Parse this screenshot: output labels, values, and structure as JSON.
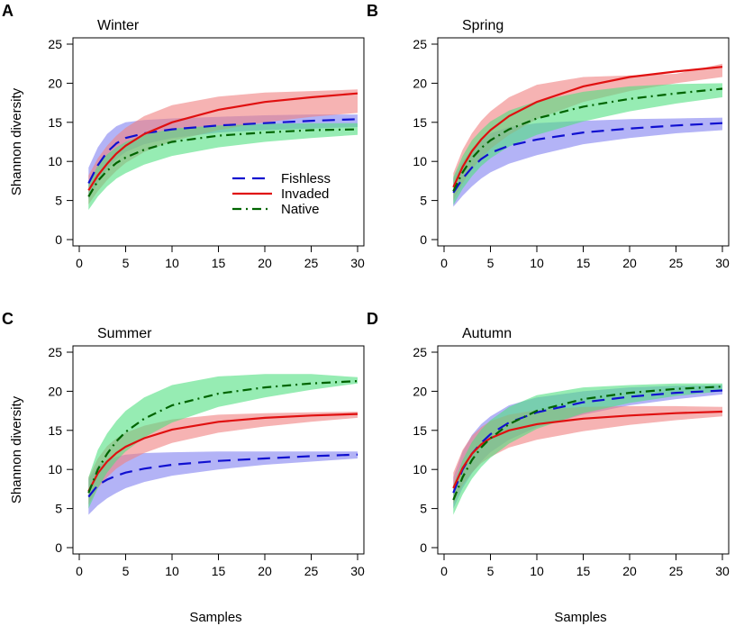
{
  "figure": {
    "xlabel": "Samples",
    "ylabel": "Shannon diversity"
  },
  "legend": [
    {
      "name": "Fishless",
      "color": "#1010d0",
      "dash": "long-dash"
    },
    {
      "name": "Invaded",
      "color": "#e01010",
      "dash": "solid"
    },
    {
      "name": "Native",
      "color": "#006400",
      "dash": "dot-dash"
    }
  ],
  "chart_data": [
    {
      "type": "line",
      "letter": "A",
      "title": "Winter",
      "xlim": [
        0,
        30
      ],
      "ylim": [
        0,
        25
      ],
      "xticks": [
        0,
        5,
        10,
        15,
        20,
        25,
        30
      ],
      "yticks": [
        0,
        5,
        10,
        15,
        20,
        25
      ],
      "x": [
        1,
        2,
        3,
        4,
        5,
        7,
        10,
        15,
        20,
        25,
        30
      ],
      "series": [
        {
          "name": "Fishless",
          "color": "#1010d0",
          "band": "#8080f0",
          "values": [
            7.2,
            9.5,
            11.2,
            12.3,
            13.0,
            13.6,
            14.1,
            14.6,
            14.9,
            15.2,
            15.4
          ],
          "lower": [
            5.2,
            7.3,
            9.0,
            10.3,
            11.2,
            12.2,
            13.0,
            13.7,
            14.0,
            14.2,
            14.4
          ],
          "upper": [
            9.2,
            11.8,
            13.5,
            14.5,
            15.0,
            15.3,
            15.5,
            15.7,
            15.9,
            16.0,
            16.0
          ]
        },
        {
          "name": "Invaded",
          "color": "#e01010",
          "band": "#f08080",
          "values": [
            6.3,
            8.2,
            9.7,
            11.0,
            12.0,
            13.5,
            15.0,
            16.6,
            17.6,
            18.2,
            18.7
          ],
          "lower": [
            4.5,
            6.2,
            7.6,
            8.8,
            9.8,
            11.2,
            12.6,
            14.0,
            15.0,
            15.7,
            16.2
          ],
          "upper": [
            8.2,
            10.4,
            12.0,
            13.3,
            14.3,
            15.8,
            17.2,
            18.3,
            18.8,
            19.0,
            19.2
          ]
        },
        {
          "name": "Native",
          "color": "#006400",
          "band": "#50e080",
          "values": [
            5.5,
            7.5,
            8.8,
            9.8,
            10.5,
            11.5,
            12.5,
            13.3,
            13.7,
            14.0,
            14.1
          ],
          "lower": [
            3.8,
            5.5,
            6.8,
            7.8,
            8.5,
            9.6,
            10.7,
            11.8,
            12.5,
            13.0,
            13.4
          ],
          "upper": [
            7.2,
            9.5,
            10.9,
            11.8,
            12.5,
            13.4,
            14.2,
            14.6,
            14.8,
            14.9,
            14.9
          ]
        }
      ]
    },
    {
      "type": "line",
      "letter": "B",
      "title": "Spring",
      "xlim": [
        0,
        30
      ],
      "ylim": [
        0,
        25
      ],
      "xticks": [
        0,
        5,
        10,
        15,
        20,
        25,
        30
      ],
      "yticks": [
        0,
        5,
        10,
        15,
        20,
        25
      ],
      "x": [
        1,
        2,
        3,
        4,
        5,
        7,
        10,
        15,
        20,
        25,
        30
      ],
      "series": [
        {
          "name": "Fishless",
          "color": "#1010d0",
          "band": "#8080f0",
          "values": [
            6.0,
            7.8,
            9.2,
            10.3,
            11.1,
            12.0,
            12.8,
            13.7,
            14.2,
            14.6,
            14.9
          ],
          "lower": [
            4.2,
            5.6,
            6.8,
            7.8,
            8.6,
            9.7,
            10.8,
            12.2,
            13.0,
            13.6,
            14.0
          ],
          "upper": [
            7.8,
            10.0,
            11.6,
            12.8,
            13.6,
            14.4,
            14.9,
            15.2,
            15.4,
            15.5,
            15.6
          ]
        },
        {
          "name": "Invaded",
          "color": "#e01010",
          "band": "#f08080",
          "values": [
            6.7,
            9.3,
            11.3,
            12.8,
            14.0,
            15.8,
            17.6,
            19.6,
            20.8,
            21.5,
            22.1
          ],
          "lower": [
            5.0,
            7.2,
            9.0,
            10.4,
            11.6,
            13.4,
            15.4,
            17.6,
            19.0,
            20.0,
            20.8
          ],
          "upper": [
            8.5,
            11.5,
            13.6,
            15.2,
            16.4,
            18.2,
            19.8,
            20.8,
            21.0,
            21.2,
            22.5
          ]
        },
        {
          "name": "Native",
          "color": "#006400",
          "band": "#50e080",
          "values": [
            6.2,
            8.6,
            10.4,
            11.7,
            12.7,
            14.1,
            15.5,
            17.0,
            18.0,
            18.7,
            19.3
          ],
          "lower": [
            4.4,
            6.5,
            8.1,
            9.4,
            10.4,
            11.9,
            13.4,
            15.1,
            16.4,
            17.4,
            18.2
          ],
          "upper": [
            8.0,
            10.7,
            12.7,
            14.0,
            15.1,
            16.5,
            17.7,
            18.9,
            19.6,
            19.9,
            20.0
          ]
        }
      ]
    },
    {
      "type": "line",
      "letter": "C",
      "title": "Summer",
      "xlim": [
        0,
        30
      ],
      "ylim": [
        0,
        25
      ],
      "xticks": [
        0,
        5,
        10,
        15,
        20,
        25,
        30
      ],
      "yticks": [
        0,
        5,
        10,
        15,
        20,
        25
      ],
      "x": [
        1,
        2,
        3,
        4,
        5,
        7,
        10,
        15,
        20,
        25,
        30
      ],
      "series": [
        {
          "name": "Fishless",
          "color": "#1010d0",
          "band": "#8080f0",
          "values": [
            6.5,
            8.0,
            8.7,
            9.2,
            9.6,
            10.1,
            10.6,
            11.1,
            11.4,
            11.7,
            11.9
          ],
          "lower": [
            4.2,
            5.4,
            6.3,
            7.0,
            7.6,
            8.4,
            9.2,
            10.0,
            10.6,
            11.0,
            11.4
          ],
          "upper": [
            8.8,
            10.5,
            11.2,
            11.6,
            11.9,
            12.1,
            12.2,
            12.3,
            12.3,
            12.3,
            12.3
          ]
        },
        {
          "name": "Invaded",
          "color": "#e01010",
          "band": "#f08080",
          "values": [
            7.2,
            9.5,
            11.0,
            12.1,
            12.9,
            14.0,
            15.1,
            16.1,
            16.6,
            16.9,
            17.1
          ],
          "lower": [
            5.5,
            7.6,
            9.0,
            10.1,
            10.9,
            12.1,
            13.4,
            14.7,
            15.5,
            16.1,
            16.6
          ],
          "upper": [
            9.0,
            11.4,
            13.0,
            14.0,
            14.7,
            15.6,
            16.4,
            17.0,
            17.2,
            17.3,
            17.4
          ]
        },
        {
          "name": "Native",
          "color": "#006400",
          "band": "#50e080",
          "values": [
            7.0,
            10.0,
            12.0,
            13.6,
            14.8,
            16.5,
            18.2,
            19.7,
            20.5,
            21.0,
            21.3
          ],
          "lower": [
            5.0,
            7.6,
            9.6,
            11.1,
            12.3,
            14.1,
            16.0,
            18.0,
            19.2,
            20.2,
            21.0
          ],
          "upper": [
            9.0,
            12.5,
            14.6,
            16.2,
            17.5,
            19.2,
            20.8,
            21.9,
            22.2,
            22.2,
            21.8
          ]
        }
      ]
    },
    {
      "type": "line",
      "letter": "D",
      "title": "Autumn",
      "xlim": [
        0,
        30
      ],
      "ylim": [
        0,
        25
      ],
      "xticks": [
        0,
        5,
        10,
        15,
        20,
        25,
        30
      ],
      "yticks": [
        0,
        5,
        10,
        15,
        20,
        25
      ],
      "x": [
        1,
        2,
        3,
        4,
        5,
        7,
        10,
        15,
        20,
        25,
        30
      ],
      "series": [
        {
          "name": "Fishless",
          "color": "#1010d0",
          "band": "#8080f0",
          "values": [
            7.0,
            10.0,
            12.0,
            13.4,
            14.5,
            16.0,
            17.3,
            18.6,
            19.3,
            19.8,
            20.1
          ],
          "lower": [
            5.0,
            7.6,
            9.5,
            11.0,
            12.2,
            13.8,
            15.4,
            17.0,
            18.2,
            19.0,
            19.6
          ],
          "upper": [
            9.0,
            12.3,
            14.4,
            15.8,
            16.8,
            18.2,
            19.2,
            20.0,
            20.5,
            20.7,
            20.8
          ]
        },
        {
          "name": "Invaded",
          "color": "#e01010",
          "band": "#f08080",
          "values": [
            7.6,
            10.2,
            12.0,
            13.2,
            14.0,
            15.0,
            15.8,
            16.5,
            16.9,
            17.2,
            17.4
          ],
          "lower": [
            5.6,
            8.0,
            9.6,
            10.8,
            11.6,
            12.8,
            13.8,
            14.9,
            15.7,
            16.3,
            16.8
          ],
          "upper": [
            9.6,
            12.5,
            14.3,
            15.4,
            16.2,
            17.0,
            17.6,
            18.0,
            18.1,
            18.1,
            18.0
          ]
        },
        {
          "name": "Native",
          "color": "#006400",
          "band": "#50e080",
          "values": [
            6.1,
            9.0,
            11.2,
            12.8,
            14.0,
            15.8,
            17.5,
            19.0,
            19.8,
            20.3,
            20.6
          ],
          "lower": [
            4.2,
            6.8,
            8.8,
            10.3,
            11.5,
            13.3,
            15.2,
            17.2,
            18.5,
            19.4,
            20.0
          ],
          "upper": [
            8.0,
            11.2,
            13.5,
            15.1,
            16.3,
            18.0,
            19.5,
            20.5,
            20.8,
            21.0,
            21.0
          ]
        }
      ]
    }
  ]
}
